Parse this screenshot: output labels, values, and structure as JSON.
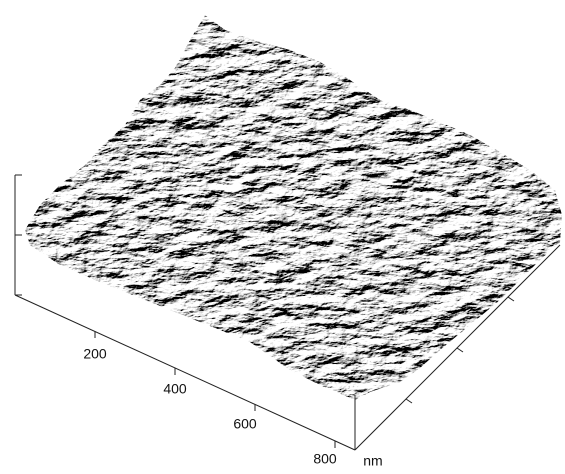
{
  "axis": {
    "labels": [
      "200",
      "400",
      "600",
      "800"
    ],
    "unit": "nm"
  }
}
